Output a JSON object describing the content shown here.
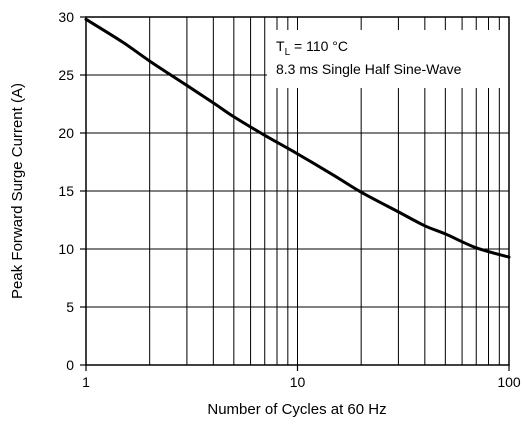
{
  "chart_data": {
    "type": "line",
    "xscale": "log",
    "xlim": [
      1,
      100
    ],
    "ylim": [
      0,
      30
    ],
    "grid": true,
    "legend": "none",
    "xlabel": "Number of Cycles at 60 Hz",
    "ylabel": "Peak Forward Surge Current (A)",
    "x_ticks": [
      1,
      10,
      100
    ],
    "x_tick_labels": [
      "1",
      "10",
      "100"
    ],
    "y_ticks": [
      0,
      5,
      10,
      15,
      20,
      25,
      30
    ],
    "y_tick_labels": [
      "0",
      "5",
      "10",
      "15",
      "20",
      "25",
      "30"
    ],
    "annotation": {
      "line1_main": "T",
      "line1_sub": "L",
      "line1_rest": " = 110 °C",
      "line2": "8.3 ms Single Half Sine-Wave"
    },
    "series": [
      {
        "x": [
          1,
          1.5,
          2,
          3,
          4,
          5,
          7,
          10,
          15,
          20,
          30,
          40,
          50,
          70,
          100
        ],
        "y": [
          29.8,
          27.8,
          26.2,
          24.1,
          22.6,
          21.4,
          19.8,
          18.2,
          16.3,
          14.9,
          13.2,
          12.0,
          11.3,
          10.1,
          9.3
        ]
      }
    ],
    "colors": {
      "line": "#000000",
      "grid": "#000000",
      "background": "#ffffff"
    }
  }
}
